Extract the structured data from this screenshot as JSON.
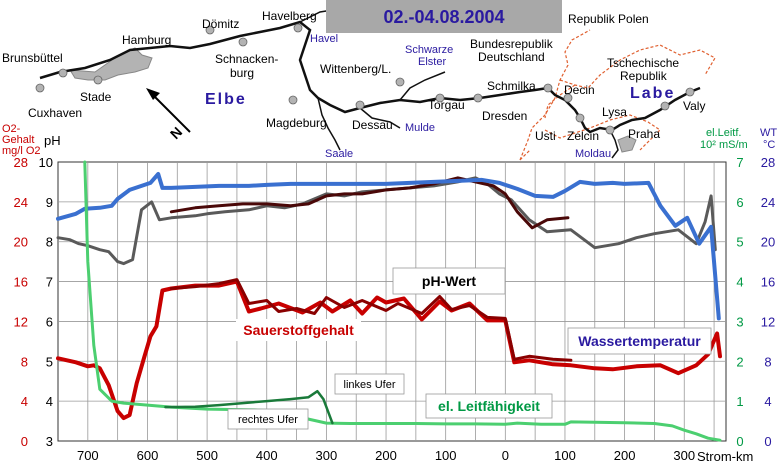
{
  "header": {
    "date_range": "02.-04.08.2004"
  },
  "map": {
    "places": [
      "Brunsbüttel",
      "Cuxhaven",
      "Hamburg",
      "Stade",
      "Dömitz",
      "Havelberg",
      "Schnackenburg",
      "Wittenberg/L.",
      "Magdeburg",
      "Dessau",
      "Torgau",
      "Dresden",
      "Schmilka",
      "Decin",
      "Usti",
      "Lysa",
      "Praha",
      "Zelcin",
      "Valy"
    ],
    "place_labels": {
      "brunsbuettel": "Brunsbüttel",
      "cuxhaven": "Cuxhaven",
      "hamburg": "Hamburg",
      "stade": "Stade",
      "doemitz": "Dömitz",
      "havelberg": "Havelberg",
      "schnacken1": "Schnacken-",
      "schnacken2": "burg",
      "wittenberg": "Wittenberg/L.",
      "magdeburg": "Magdeburg",
      "dessau": "Dessau",
      "torgau": "Torgau",
      "dresden": "Dresden",
      "schmilka": "Schmilka",
      "decin": "Decin",
      "usti": "Usti",
      "lysa": "Lysa",
      "praha": "Praha",
      "zelcin": "Zelcin",
      "valy": "Valy"
    },
    "rivers": {
      "havel": "Havel",
      "schwarze1": "Schwarze",
      "schwarze2": "Elster",
      "saale": "Saale",
      "mulde": "Mulde",
      "moldau": "Moldau",
      "elbe": "Elbe",
      "labe": "Labe"
    },
    "countries": {
      "poland": "Republik Polen",
      "germany1": "Bundesrepublik",
      "germany2": "Deutschland",
      "czech1": "Tschechische",
      "czech2": "Republik"
    },
    "north_letter": "N"
  },
  "axis_titles": {
    "o2_line1": "O2-",
    "o2_line2": "Gehalt",
    "o2_line3": "mg/l O2",
    "ph": "pH",
    "lf_line1": "el.Leitf.",
    "lf_line2": "10² mS/m",
    "wt_line1": "WT",
    "wt_line2": "°C",
    "x_unit": "Strom-km"
  },
  "chart_data": {
    "type": "line",
    "x_axis": {
      "ticks": [
        "700",
        "600",
        "500",
        "400",
        "300",
        "200",
        "100",
        "0",
        "100",
        "200",
        "300"
      ],
      "unit": "Strom-km",
      "note": "German Elbe km decreasing to 0 at the border, then Czech Labe km increasing",
      "position_range": [
        -750,
        370
      ]
    },
    "axes": {
      "o2": {
        "label": "O2-Gehalt mg/l O2",
        "range": [
          0,
          28
        ],
        "ticks": [
          0,
          4,
          8,
          12,
          16,
          20,
          24,
          28
        ],
        "color": "#cc0000"
      },
      "ph": {
        "label": "pH",
        "range": [
          3,
          10
        ],
        "ticks": [
          3,
          4,
          5,
          6,
          7,
          8,
          9,
          10
        ],
        "color": "#000000"
      },
      "lf": {
        "label": "el.Leitf. 10^2 mS/m",
        "range": [
          0,
          7
        ],
        "ticks": [
          0,
          1,
          2,
          3,
          4,
          5,
          6,
          7
        ],
        "color": "#009944"
      },
      "wt": {
        "label": "WT °C",
        "range": [
          0,
          28
        ],
        "ticks": [
          0,
          4,
          8,
          12,
          16,
          20,
          24,
          28
        ],
        "color": "#2a1aa0"
      }
    },
    "grid": true,
    "annotations": {
      "ph": "pH-Wert",
      "o2": "Sauerstoffgehalt",
      "wt": "Wassertemperatur",
      "lf": "el. Leitfähigkeit",
      "left_bank": "linkes Ufer",
      "right_bank": "rechtes Ufer"
    },
    "series": [
      {
        "key": "ph_right",
        "axis": "ph",
        "color": "#5a5a5a",
        "width": 3,
        "points": [
          [
            -750,
            8.1
          ],
          [
            -730,
            8.05
          ],
          [
            -715,
            7.95
          ],
          [
            -700,
            7.9
          ],
          [
            -680,
            7.8
          ],
          [
            -665,
            7.75
          ],
          [
            -650,
            7.5
          ],
          [
            -640,
            7.45
          ],
          [
            -625,
            7.55
          ],
          [
            -610,
            8.8
          ],
          [
            -593,
            9.0
          ],
          [
            -580,
            8.55
          ],
          [
            -560,
            8.6
          ],
          [
            -520,
            8.65
          ],
          [
            -500,
            8.7
          ],
          [
            -470,
            8.75
          ],
          [
            -430,
            8.8
          ],
          [
            -400,
            8.9
          ],
          [
            -370,
            8.85
          ],
          [
            -340,
            8.95
          ],
          [
            -300,
            9.2
          ],
          [
            -270,
            9.15
          ],
          [
            -240,
            9.25
          ],
          [
            -200,
            9.3
          ],
          [
            -160,
            9.35
          ],
          [
            -120,
            9.4
          ],
          [
            -80,
            9.5
          ],
          [
            -50,
            9.6
          ],
          [
            -30,
            9.45
          ],
          [
            -10,
            9.2
          ],
          [
            10,
            9.05
          ],
          [
            40,
            8.55
          ],
          [
            70,
            8.25
          ],
          [
            110,
            8.3
          ],
          [
            150,
            7.85
          ],
          [
            190,
            7.95
          ],
          [
            220,
            8.1
          ],
          [
            250,
            8.2
          ],
          [
            290,
            8.3
          ],
          [
            320,
            7.95
          ],
          [
            335,
            8.5
          ],
          [
            345,
            9.15
          ],
          [
            352,
            7.8
          ]
        ]
      },
      {
        "key": "ph_left",
        "axis": "ph",
        "color": "#4a0808",
        "width": 3,
        "points": [
          [
            -560,
            8.75
          ],
          [
            -520,
            8.85
          ],
          [
            -480,
            8.9
          ],
          [
            -440,
            8.95
          ],
          [
            -400,
            8.95
          ],
          [
            -360,
            8.9
          ],
          [
            -330,
            8.95
          ],
          [
            -300,
            9.15
          ],
          [
            -270,
            9.2
          ],
          [
            -240,
            9.2
          ],
          [
            -200,
            9.3
          ],
          [
            -160,
            9.35
          ],
          [
            -120,
            9.45
          ],
          [
            -80,
            9.6
          ],
          [
            -50,
            9.5
          ],
          [
            -20,
            9.4
          ],
          [
            0,
            9.2
          ],
          [
            20,
            8.75
          ],
          [
            45,
            8.35
          ],
          [
            70,
            8.55
          ],
          [
            105,
            8.6
          ]
        ]
      },
      {
        "key": "wt",
        "axis": "wt",
        "color": "#3a70d0",
        "width": 4,
        "points": [
          [
            -750,
            22.3
          ],
          [
            -720,
            22.8
          ],
          [
            -705,
            23.3
          ],
          [
            -680,
            23.4
          ],
          [
            -660,
            23.6
          ],
          [
            -650,
            24.3
          ],
          [
            -630,
            25.2
          ],
          [
            -610,
            25.6
          ],
          [
            -595,
            25.9
          ],
          [
            -582,
            26.8
          ],
          [
            -575,
            25.4
          ],
          [
            -560,
            25.4
          ],
          [
            -520,
            25.5
          ],
          [
            -480,
            25.6
          ],
          [
            -430,
            25.6
          ],
          [
            -400,
            25.7
          ],
          [
            -360,
            25.8
          ],
          [
            -320,
            25.8
          ],
          [
            -280,
            25.8
          ],
          [
            -240,
            25.8
          ],
          [
            -200,
            25.8
          ],
          [
            -160,
            25.9
          ],
          [
            -120,
            26.0
          ],
          [
            -80,
            26.1
          ],
          [
            -40,
            26.2
          ],
          [
            -10,
            25.9
          ],
          [
            20,
            25.3
          ],
          [
            50,
            24.6
          ],
          [
            80,
            24.5
          ],
          [
            100,
            25.1
          ],
          [
            125,
            26.0
          ],
          [
            150,
            25.8
          ],
          [
            180,
            25.9
          ],
          [
            200,
            25.8
          ],
          [
            240,
            25.9
          ],
          [
            260,
            23.6
          ],
          [
            285,
            21.6
          ],
          [
            305,
            22.4
          ],
          [
            325,
            19.8
          ],
          [
            345,
            21.5
          ],
          [
            358,
            12.3
          ]
        ]
      },
      {
        "key": "o2_right",
        "axis": "o2",
        "color": "#c80000",
        "width": 4,
        "points": [
          [
            -750,
            8.3
          ],
          [
            -720,
            7.9
          ],
          [
            -700,
            7.5
          ],
          [
            -690,
            7.6
          ],
          [
            -680,
            7.3
          ],
          [
            -665,
            5.6
          ],
          [
            -650,
            3.0
          ],
          [
            -640,
            2.3
          ],
          [
            -630,
            2.6
          ],
          [
            -618,
            5.8
          ],
          [
            -605,
            8.5
          ],
          [
            -595,
            10.5
          ],
          [
            -585,
            11.5
          ],
          [
            -575,
            15.1
          ],
          [
            -560,
            15.3
          ],
          [
            -520,
            15.6
          ],
          [
            -480,
            15.6
          ],
          [
            -450,
            16.0
          ],
          [
            -430,
            13.0
          ],
          [
            -410,
            13.3
          ],
          [
            -380,
            13.8
          ],
          [
            -340,
            12.9
          ],
          [
            -310,
            13.9
          ],
          [
            -290,
            13.0
          ],
          [
            -260,
            14.1
          ],
          [
            -240,
            12.8
          ],
          [
            -215,
            14.4
          ],
          [
            -200,
            13.9
          ],
          [
            -170,
            14.3
          ],
          [
            -140,
            12.2
          ],
          [
            -110,
            14.0
          ],
          [
            -90,
            13.1
          ],
          [
            -60,
            13.8
          ],
          [
            -30,
            12.1
          ],
          [
            0,
            12.1
          ],
          [
            15,
            7.9
          ],
          [
            40,
            8.1
          ],
          [
            80,
            7.7
          ],
          [
            110,
            7.6
          ],
          [
            150,
            7.3
          ],
          [
            180,
            7.2
          ],
          [
            220,
            7.5
          ],
          [
            260,
            7.6
          ],
          [
            290,
            6.8
          ],
          [
            320,
            7.6
          ],
          [
            340,
            8.7
          ],
          [
            355,
            10.8
          ],
          [
            360,
            8.5
          ]
        ]
      },
      {
        "key": "o2_left",
        "axis": "o2",
        "color": "#8a0000",
        "width": 3,
        "points": [
          [
            -560,
            15.3
          ],
          [
            -520,
            15.5
          ],
          [
            -480,
            15.8
          ],
          [
            -450,
            16.2
          ],
          [
            -430,
            13.8
          ],
          [
            -400,
            14.1
          ],
          [
            -380,
            13.0
          ],
          [
            -350,
            13.3
          ],
          [
            -320,
            12.8
          ],
          [
            -300,
            14.4
          ],
          [
            -270,
            13.4
          ],
          [
            -240,
            14.1
          ],
          [
            -200,
            13.1
          ],
          [
            -180,
            13.8
          ],
          [
            -140,
            12.8
          ],
          [
            -110,
            14.5
          ],
          [
            -90,
            13.2
          ],
          [
            -60,
            13.6
          ],
          [
            -30,
            12.4
          ],
          [
            0,
            12.3
          ],
          [
            15,
            8.2
          ],
          [
            40,
            8.5
          ],
          [
            80,
            8.2
          ],
          [
            110,
            8.1
          ]
        ]
      },
      {
        "key": "lf_right",
        "axis": "lf",
        "color": "#4ccf70",
        "width": 3,
        "points": [
          [
            -705,
            7.0
          ],
          [
            -700,
            4.5
          ],
          [
            -690,
            2.4
          ],
          [
            -680,
            1.3
          ],
          [
            -660,
            1.0
          ],
          [
            -640,
            0.95
          ],
          [
            -600,
            0.9
          ],
          [
            -560,
            0.85
          ],
          [
            -500,
            0.8
          ],
          [
            -420,
            0.78
          ],
          [
            -360,
            0.74
          ],
          [
            -330,
            0.55
          ],
          [
            -300,
            0.45
          ],
          [
            -260,
            0.44
          ],
          [
            -200,
            0.44
          ],
          [
            -150,
            0.44
          ],
          [
            -100,
            0.43
          ],
          [
            -50,
            0.43
          ],
          [
            0,
            0.42
          ],
          [
            20,
            0.45
          ],
          [
            60,
            0.42
          ],
          [
            100,
            0.42
          ],
          [
            110,
            0.48
          ],
          [
            150,
            0.47
          ],
          [
            200,
            0.46
          ],
          [
            250,
            0.44
          ],
          [
            280,
            0.38
          ],
          [
            300,
            0.27
          ],
          [
            320,
            0.18
          ],
          [
            340,
            0.07
          ],
          [
            360,
            0.02
          ]
        ]
      },
      {
        "key": "lf_left",
        "axis": "lf",
        "color": "#1a7a3a",
        "width": 2.5,
        "points": [
          [
            -570,
            0.85
          ],
          [
            -520,
            0.86
          ],
          [
            -480,
            0.9
          ],
          [
            -440,
            0.95
          ],
          [
            -400,
            1.0
          ],
          [
            -360,
            1.05
          ],
          [
            -330,
            1.1
          ],
          [
            -315,
            1.25
          ],
          [
            -305,
            1.05
          ],
          [
            -290,
            0.45
          ]
        ]
      }
    ]
  }
}
